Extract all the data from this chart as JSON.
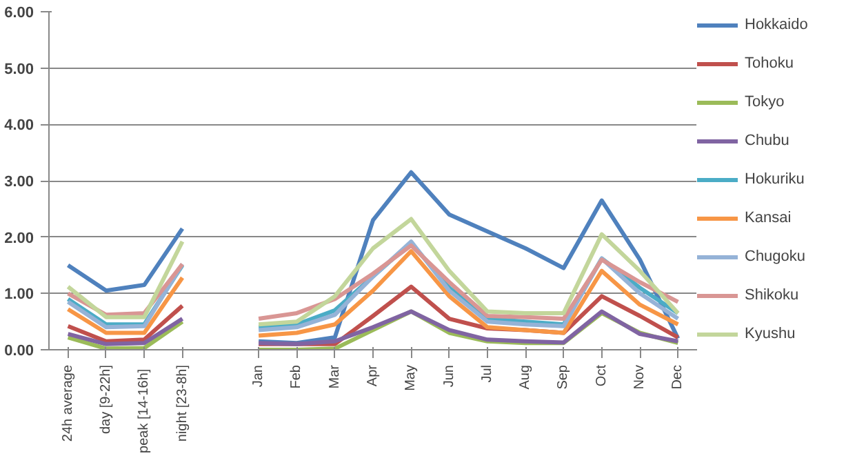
{
  "chart_data": {
    "type": "line",
    "categories": [
      "24h average",
      "day [9-22h]",
      "peak  [14-16h]",
      "night [23-8h]",
      null,
      "Jan",
      "Feb",
      "Mar",
      "Apr",
      "May",
      "Jun",
      "Jul",
      "Aug",
      "Sep",
      "Oct",
      "Nov",
      "Dec"
    ],
    "series": [
      {
        "name": "Hokkaido",
        "color": "#4f81bd",
        "values": [
          1.5,
          1.05,
          1.15,
          2.15,
          null,
          0.15,
          0.12,
          0.22,
          2.3,
          3.15,
          2.4,
          2.1,
          1.8,
          1.45,
          2.65,
          1.6,
          0.2
        ]
      },
      {
        "name": "Tohoku",
        "color": "#c0504d",
        "values": [
          0.42,
          0.15,
          0.18,
          0.78,
          null,
          0.1,
          0.1,
          0.1,
          0.6,
          1.12,
          0.55,
          0.38,
          0.35,
          0.3,
          0.95,
          0.6,
          0.22
        ]
      },
      {
        "name": "Tokyo",
        "color": "#9bbb59",
        "values": [
          0.22,
          0.02,
          0.03,
          0.5,
          null,
          0.0,
          0.0,
          0.02,
          0.35,
          0.68,
          0.3,
          0.15,
          0.12,
          0.12,
          0.65,
          0.3,
          0.12
        ]
      },
      {
        "name": "Chubu",
        "color": "#8064a2",
        "values": [
          0.28,
          0.1,
          0.12,
          0.55,
          null,
          0.12,
          0.1,
          0.15,
          0.4,
          0.68,
          0.35,
          0.18,
          0.15,
          0.13,
          0.68,
          0.28,
          0.15
        ]
      },
      {
        "name": "Hokuriku",
        "color": "#4bacc6",
        "values": [
          0.9,
          0.45,
          0.45,
          1.5,
          null,
          0.4,
          0.45,
          0.7,
          1.3,
          1.9,
          1.1,
          0.55,
          0.5,
          0.45,
          1.62,
          1.1,
          0.65
        ]
      },
      {
        "name": "Kansai",
        "color": "#f79646",
        "values": [
          0.72,
          0.3,
          0.3,
          1.28,
          null,
          0.25,
          0.3,
          0.45,
          1.05,
          1.75,
          0.95,
          0.4,
          0.35,
          0.3,
          1.4,
          0.8,
          0.45
        ]
      },
      {
        "name": "Chugoku",
        "color": "#95b3d7",
        "values": [
          0.85,
          0.4,
          0.42,
          1.52,
          null,
          0.35,
          0.4,
          0.62,
          1.3,
          1.92,
          1.05,
          0.5,
          0.45,
          0.42,
          1.62,
          1.0,
          0.55
        ]
      },
      {
        "name": "Shikoku",
        "color": "#d99694",
        "values": [
          1.0,
          0.62,
          0.65,
          1.52,
          null,
          0.55,
          0.65,
          0.9,
          1.35,
          1.85,
          1.2,
          0.6,
          0.58,
          0.55,
          1.6,
          1.2,
          0.85
        ]
      },
      {
        "name": "Kyushu",
        "color": "#c3d69b",
        "values": [
          1.12,
          0.58,
          0.58,
          1.92,
          null,
          0.45,
          0.5,
          0.95,
          1.8,
          2.32,
          1.4,
          0.68,
          0.65,
          0.65,
          2.05,
          1.4,
          0.65
        ]
      }
    ],
    "ylim": [
      0,
      6
    ],
    "yticks": [
      {
        "value": 0,
        "label": "0.00"
      },
      {
        "value": 1,
        "label": "1.00"
      },
      {
        "value": 2,
        "label": "2.00"
      },
      {
        "value": 3,
        "label": "3.00"
      },
      {
        "value": 4,
        "label": "4.00"
      },
      {
        "value": 5,
        "label": "5.00"
      },
      {
        "value": 6,
        "label": "6.00"
      }
    ],
    "grid": "y",
    "legend": "right",
    "marker": "none",
    "line_style": "solid"
  }
}
